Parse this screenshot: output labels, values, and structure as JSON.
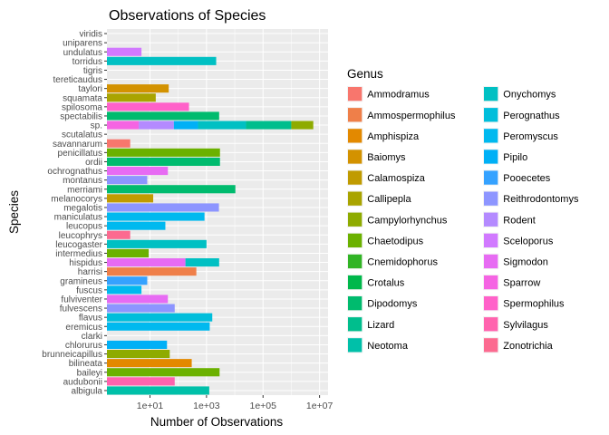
{
  "chart_data": {
    "type": "bar",
    "orientation": "horizontal",
    "stacked": true,
    "title": "Observations of Species",
    "xlabel": "Number of Observations",
    "ylabel": "Species",
    "x_scale": "log10",
    "xlim": [
      0.3,
      20000000
    ],
    "x_ticks": [
      10,
      1000,
      100000,
      10000000
    ],
    "x_tick_labels": [
      "1e+01",
      "1e+03",
      "1e+05",
      "1e+07"
    ],
    "grid": true,
    "legend_title": "Genus",
    "legend_position": "right",
    "genera": [
      {
        "name": "Ammodramus",
        "color": "#F8766D"
      },
      {
        "name": "Ammospermophilus",
        "color": "#EF7F49"
      },
      {
        "name": "Amphispiza",
        "color": "#E38900"
      },
      {
        "name": "Baiomys",
        "color": "#D39200"
      },
      {
        "name": "Calamospiza",
        "color": "#C09B00"
      },
      {
        "name": "Callipepla",
        "color": "#A9A400"
      },
      {
        "name": "Campylorhynchus",
        "color": "#8EAB00"
      },
      {
        "name": "Chaetodipus",
        "color": "#6BB100"
      },
      {
        "name": "Cnemidophorus",
        "color": "#31B425"
      },
      {
        "name": "Crotalus",
        "color": "#00B84B"
      },
      {
        "name": "Dipodomys",
        "color": "#00BB6E"
      },
      {
        "name": "Lizard",
        "color": "#00BE8D"
      },
      {
        "name": "Neotoma",
        "color": "#00C0A9"
      },
      {
        "name": "Onychomys",
        "color": "#00C0C3"
      },
      {
        "name": "Perognathus",
        "color": "#00BEDB"
      },
      {
        "name": "Peromyscus",
        "color": "#00B9EF"
      },
      {
        "name": "Pipilo",
        "color": "#00B0F6"
      },
      {
        "name": "Pooecetes",
        "color": "#35A2FF"
      },
      {
        "name": "Reithrodontomys",
        "color": "#8D95FF"
      },
      {
        "name": "Rodent",
        "color": "#B48AFF"
      },
      {
        "name": "Sceloporus",
        "color": "#D179FF"
      },
      {
        "name": "Sigmodon",
        "color": "#E76BF3"
      },
      {
        "name": "Sparrow",
        "color": "#F564E3"
      },
      {
        "name": "Spermophilus",
        "color": "#FF61C9"
      },
      {
        "name": "Sylvilagus",
        "color": "#FF63AE"
      },
      {
        "name": "Zonotrichia",
        "color": "#FC6A90"
      }
    ],
    "species": [
      {
        "name": "albigula",
        "segments": [
          {
            "genus": "Neotoma",
            "value": 1250
          }
        ]
      },
      {
        "name": "audubonii",
        "segments": [
          {
            "genus": "Sylvilagus",
            "value": 75
          }
        ]
      },
      {
        "name": "baileyi",
        "segments": [
          {
            "genus": "Chaetodipus",
            "value": 2900
          }
        ]
      },
      {
        "name": "bilineata",
        "segments": [
          {
            "genus": "Amphispiza",
            "value": 300
          }
        ]
      },
      {
        "name": "brunneicapillus",
        "segments": [
          {
            "genus": "Campylorhynchus",
            "value": 50
          }
        ]
      },
      {
        "name": "chlorurus",
        "segments": [
          {
            "genus": "Pipilo",
            "value": 40
          }
        ]
      },
      {
        "name": "clarki",
        "segments": []
      },
      {
        "name": "eremicus",
        "segments": [
          {
            "genus": "Peromyscus",
            "value": 1300
          }
        ]
      },
      {
        "name": "flavus",
        "segments": [
          {
            "genus": "Perognathus",
            "value": 1600
          }
        ]
      },
      {
        "name": "fulvescens",
        "segments": [
          {
            "genus": "Reithrodontomys",
            "value": 75
          }
        ]
      },
      {
        "name": "fulviventer",
        "segments": [
          {
            "genus": "Sigmodon",
            "value": 43
          }
        ]
      },
      {
        "name": "fuscus",
        "segments": [
          {
            "genus": "Peromyscus",
            "value": 5
          }
        ]
      },
      {
        "name": "gramineus",
        "segments": [
          {
            "genus": "Pooecetes",
            "value": 8
          }
        ]
      },
      {
        "name": "harrisi",
        "segments": [
          {
            "genus": "Ammospermophilus",
            "value": 437
          }
        ]
      },
      {
        "name": "hispidus",
        "segments": [
          {
            "genus": "Sigmodon",
            "value": 180
          },
          {
            "genus": "Onychomys",
            "value": 2800
          }
        ]
      },
      {
        "name": "intermedius",
        "segments": [
          {
            "genus": "Chaetodipus",
            "value": 9
          }
        ]
      },
      {
        "name": "leucogaster",
        "segments": [
          {
            "genus": "Onychomys",
            "value": 1000
          }
        ]
      },
      {
        "name": "leucophrys",
        "segments": [
          {
            "genus": "Zonotrichia",
            "value": 2
          }
        ]
      },
      {
        "name": "leucopus",
        "segments": [
          {
            "genus": "Peromyscus",
            "value": 35
          }
        ]
      },
      {
        "name": "maniculatus",
        "segments": [
          {
            "genus": "Peromyscus",
            "value": 850
          }
        ]
      },
      {
        "name": "megalotis",
        "segments": [
          {
            "genus": "Reithrodontomys",
            "value": 2750
          }
        ]
      },
      {
        "name": "melanocorys",
        "segments": [
          {
            "genus": "Calamospiza",
            "value": 13
          }
        ]
      },
      {
        "name": "merriami",
        "segments": [
          {
            "genus": "Dipodomys",
            "value": 10500
          }
        ]
      },
      {
        "name": "montanus",
        "segments": [
          {
            "genus": "Reithrodontomys",
            "value": 8
          }
        ]
      },
      {
        "name": "ochrognathus",
        "segments": [
          {
            "genus": "Sigmodon",
            "value": 43
          }
        ]
      },
      {
        "name": "ordii",
        "segments": [
          {
            "genus": "Dipodomys",
            "value": 3000
          }
        ]
      },
      {
        "name": "penicillatus",
        "segments": [
          {
            "genus": "Chaetodipus",
            "value": 3000
          }
        ]
      },
      {
        "name": "savannarum",
        "segments": [
          {
            "genus": "Ammodramus",
            "value": 2
          }
        ]
      },
      {
        "name": "scutalatus",
        "segments": []
      },
      {
        "name": "sp.",
        "segments": [
          {
            "genus": "Sparrow",
            "value": 4
          },
          {
            "genus": "Rodent",
            "value": 70
          },
          {
            "genus": "Pipilo",
            "value": 500
          },
          {
            "genus": "Onychomys",
            "value": 25000
          },
          {
            "genus": "Lizard",
            "value": 1000000
          },
          {
            "genus": "Campylorhynchus",
            "value": 6000000
          }
        ]
      },
      {
        "name": "spectabilis",
        "segments": [
          {
            "genus": "Dipodomys",
            "value": 2800
          }
        ]
      },
      {
        "name": "spilosoma",
        "segments": [
          {
            "genus": "Spermophilus",
            "value": 240
          }
        ]
      },
      {
        "name": "squamata",
        "segments": [
          {
            "genus": "Callipepla",
            "value": 16
          }
        ]
      },
      {
        "name": "taylori",
        "segments": [
          {
            "genus": "Baiomys",
            "value": 46
          }
        ]
      },
      {
        "name": "tereticaudus",
        "segments": []
      },
      {
        "name": "tigris",
        "segments": []
      },
      {
        "name": "torridus",
        "segments": [
          {
            "genus": "Onychomys",
            "value": 2200
          }
        ]
      },
      {
        "name": "undulatus",
        "segments": [
          {
            "genus": "Sceloporus",
            "value": 5
          }
        ]
      },
      {
        "name": "uniparens",
        "segments": []
      },
      {
        "name": "viridis",
        "segments": []
      }
    ]
  }
}
